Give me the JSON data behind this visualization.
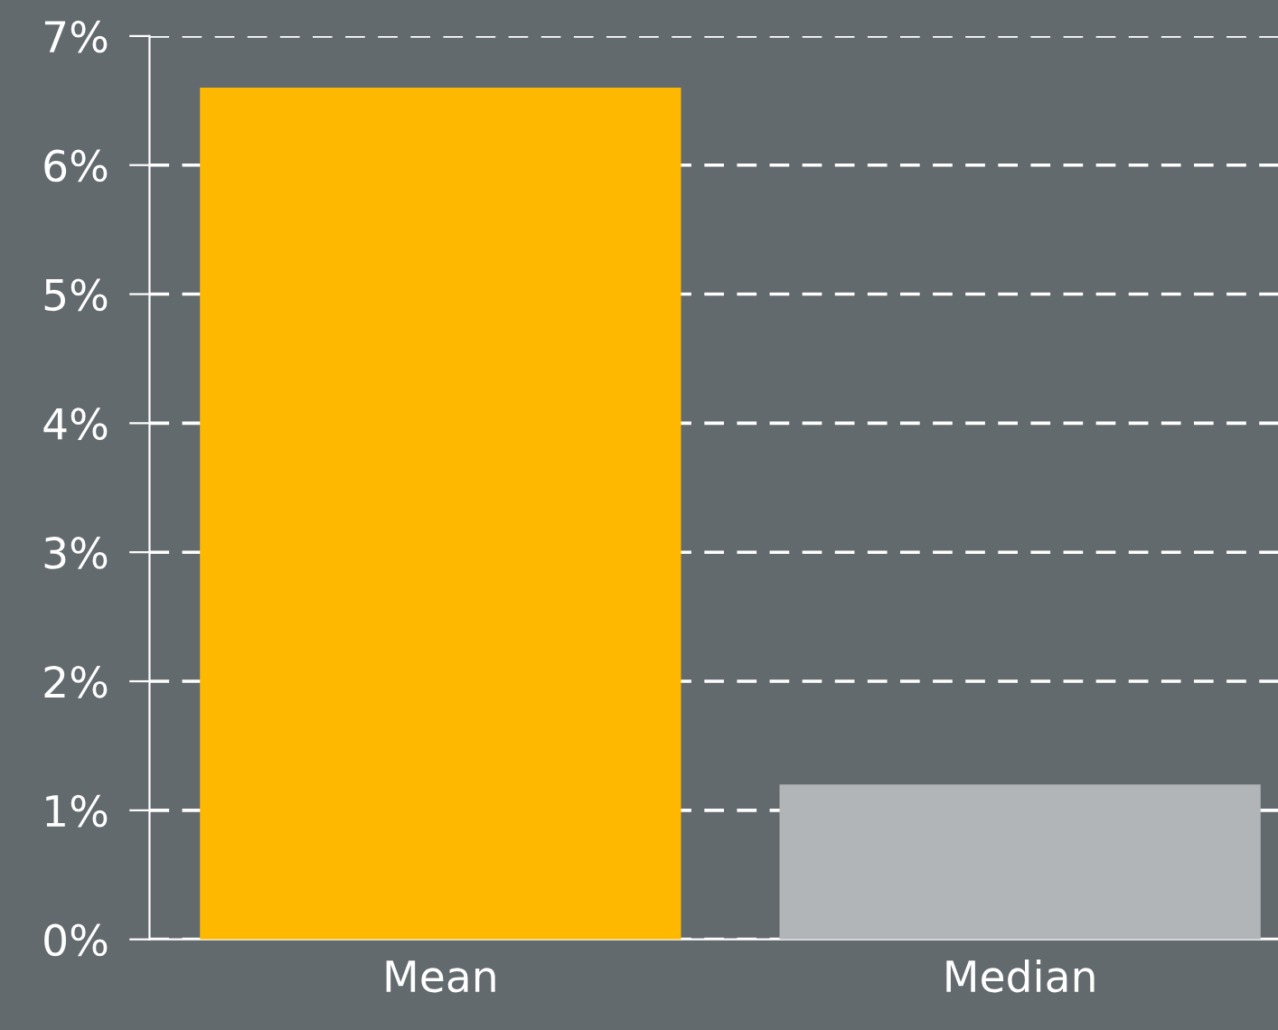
{
  "chart_data": {
    "type": "bar",
    "categories": [
      "Mean",
      "Median"
    ],
    "values": [
      6.6,
      1.2
    ],
    "colors": [
      "#ffb800",
      "#b2b5b7"
    ],
    "ylim": [
      0,
      7
    ],
    "yticks": [
      {
        "value": 0,
        "label": "0%"
      },
      {
        "value": 1,
        "label": "1%"
      },
      {
        "value": 2,
        "label": "2%"
      },
      {
        "value": 3,
        "label": "3%"
      },
      {
        "value": 4,
        "label": "4%"
      },
      {
        "value": 5,
        "label": "5%"
      },
      {
        "value": 6,
        "label": "6%"
      },
      {
        "value": 7,
        "label": "7%"
      }
    ],
    "grid": "y",
    "line_style": "dashed",
    "legend": false
  }
}
